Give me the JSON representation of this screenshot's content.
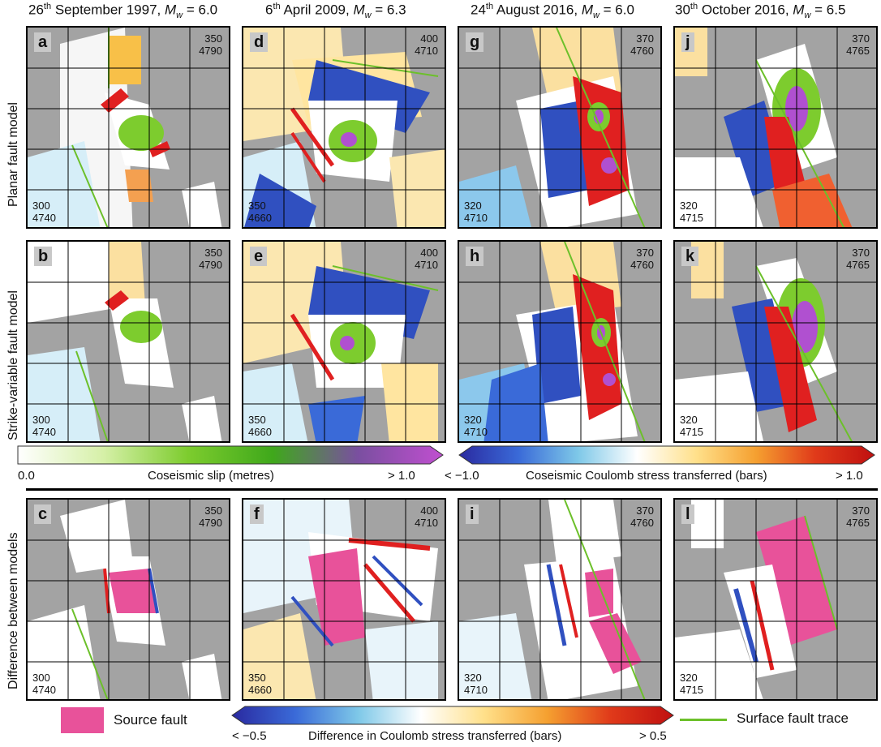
{
  "columns": [
    {
      "date_day": "26",
      "date_suffix": "th",
      "date_rest": " September 1997, ",
      "mag_symbol": "M",
      "mag_sub": "w",
      "mag_value": " = 6.0"
    },
    {
      "date_day": "6",
      "date_suffix": "th",
      "date_rest": " April 2009, ",
      "mag_symbol": "M",
      "mag_sub": "w",
      "mag_value": " = 6.3"
    },
    {
      "date_day": "24",
      "date_suffix": "th",
      "date_rest": " August 2016, ",
      "mag_symbol": "M",
      "mag_sub": "w",
      "mag_value": " = 6.0"
    },
    {
      "date_day": "30",
      "date_suffix": "th",
      "date_rest": " October 2016, ",
      "mag_symbol": "M",
      "mag_sub": "w",
      "mag_value": " = 6.5"
    }
  ],
  "rows": [
    {
      "label": "Planar fault model"
    },
    {
      "label": "Strike-variable fault model"
    },
    {
      "label": "Difference between models"
    }
  ],
  "panels": [
    {
      "id": "a",
      "ne_e": "350",
      "ne_n": "4790",
      "sw_e": "300",
      "sw_n": "4740"
    },
    {
      "id": "d",
      "ne_e": "400",
      "ne_n": "4710",
      "sw_e": "350",
      "sw_n": "4660"
    },
    {
      "id": "g",
      "ne_e": "370",
      "ne_n": "4760",
      "sw_e": "320",
      "sw_n": "4710"
    },
    {
      "id": "j",
      "ne_e": "370",
      "ne_n": "4765",
      "sw_e": "320",
      "sw_n": "4715"
    },
    {
      "id": "b",
      "ne_e": "350",
      "ne_n": "4790",
      "sw_e": "300",
      "sw_n": "4740"
    },
    {
      "id": "e",
      "ne_e": "400",
      "ne_n": "4710",
      "sw_e": "350",
      "sw_n": "4660"
    },
    {
      "id": "h",
      "ne_e": "370",
      "ne_n": "4760",
      "sw_e": "320",
      "sw_n": "4710"
    },
    {
      "id": "k",
      "ne_e": "370",
      "ne_n": "4765",
      "sw_e": "320",
      "sw_n": "4715"
    },
    {
      "id": "c",
      "ne_e": "350",
      "ne_n": "4790",
      "sw_e": "300",
      "sw_n": "4740"
    },
    {
      "id": "f",
      "ne_e": "400",
      "ne_n": "4710",
      "sw_e": "350",
      "sw_n": "4660"
    },
    {
      "id": "i",
      "ne_e": "370",
      "ne_n": "4760",
      "sw_e": "320",
      "sw_n": "4710"
    },
    {
      "id": "l",
      "ne_e": "370",
      "ne_n": "4765",
      "sw_e": "320",
      "sw_n": "4715"
    }
  ],
  "colorbars": {
    "slip": {
      "min_label": "0.0",
      "title": "Coseismic slip (metres)",
      "max_label": "> 1.0",
      "colors": [
        "#ffffff",
        "#d6f0a8",
        "#7dcc2e",
        "#3fa81b",
        "#7a4fa0",
        "#c04fd0"
      ]
    },
    "coulomb": {
      "min_label": "< −1.0",
      "title": "Coseismic Coulomb stress transferred (bars)",
      "max_label": "> 1.0",
      "colors": [
        "#2a2aa0",
        "#3a6ad8",
        "#7ec8e8",
        "#ffffff",
        "#ffe08a",
        "#f5a030",
        "#e03a1a",
        "#c01010"
      ]
    },
    "difference": {
      "min_label": "< −0.5",
      "title": "Difference in Coulomb stress transferred (bars)",
      "max_label": "> 0.5",
      "colors": [
        "#2a2aa0",
        "#3a6ad8",
        "#7ec8e8",
        "#ffffff",
        "#ffe08a",
        "#f5a030",
        "#e03a1a",
        "#c01010"
      ]
    }
  },
  "legend": {
    "source_fault": "Source fault",
    "source_fault_color": "#e8529a",
    "surface_trace": "Surface fault trace",
    "surface_trace_color": "#6cc02a"
  },
  "colors": {
    "background_rock": "#a3a3a3",
    "grid": "#000000"
  }
}
